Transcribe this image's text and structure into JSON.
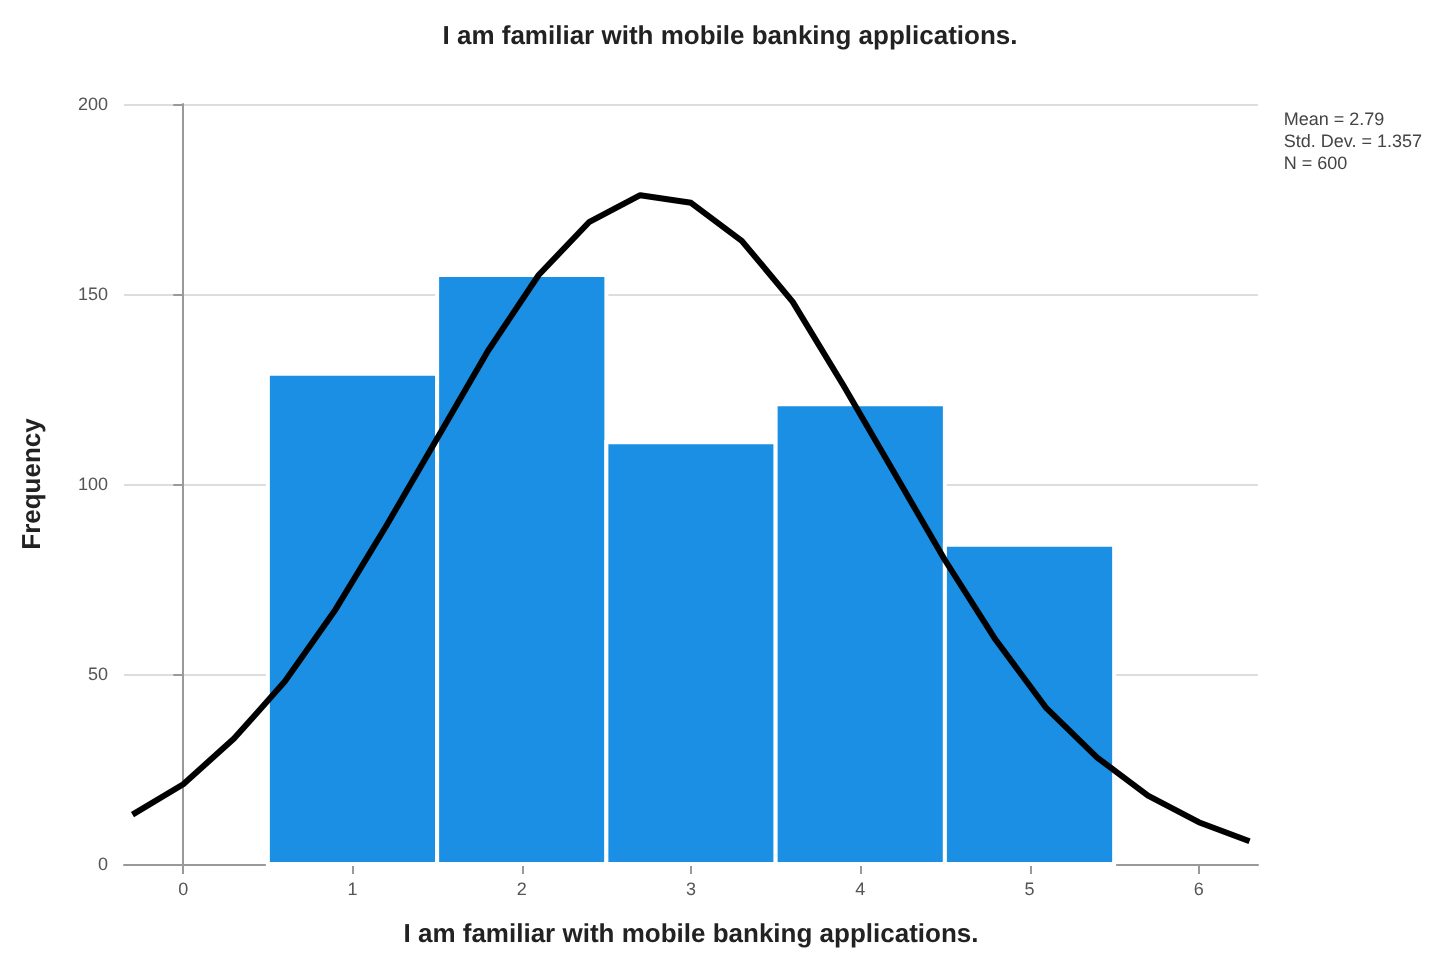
{
  "chart_data": {
    "type": "histogram",
    "title": "I am familiar with mobile banking applications.",
    "xlabel": "I am familiar with mobile banking applications.",
    "ylabel": "Frequency",
    "bins": [
      0.5,
      1.5,
      2.5,
      3.5,
      4.5,
      5.5
    ],
    "values": [
      129,
      155,
      111,
      121,
      84
    ],
    "color": "#1a8fe3",
    "series": [
      {
        "type": "line",
        "color": "#000000",
        "x": [
          -0.3,
          0,
          0.3,
          0.6,
          0.9,
          1.2,
          1.5,
          1.8,
          2.1,
          2.4,
          2.7,
          3.0,
          3.3,
          3.6,
          3.9,
          4.2,
          4.5,
          4.8,
          5.1,
          5.4,
          5.7,
          6.0,
          6.3
        ],
        "values": [
          13,
          21,
          33,
          48,
          67,
          89,
          112,
          135,
          155,
          169,
          176,
          174,
          164,
          148,
          126,
          103,
          80,
          59,
          41,
          28,
          18,
          11,
          6
        ]
      }
    ],
    "annotations": [
      "Mean = 2.79",
      "Std. Dev. = 1.357",
      "N = 600"
    ],
    "xlim": [
      -0.35,
      6.35
    ],
    "xticks": [
      0,
      1,
      2,
      3,
      4,
      5,
      6
    ],
    "ylim": [
      0,
      200
    ],
    "yticks": [
      0,
      50,
      100,
      150,
      200
    ],
    "grid": "y"
  }
}
